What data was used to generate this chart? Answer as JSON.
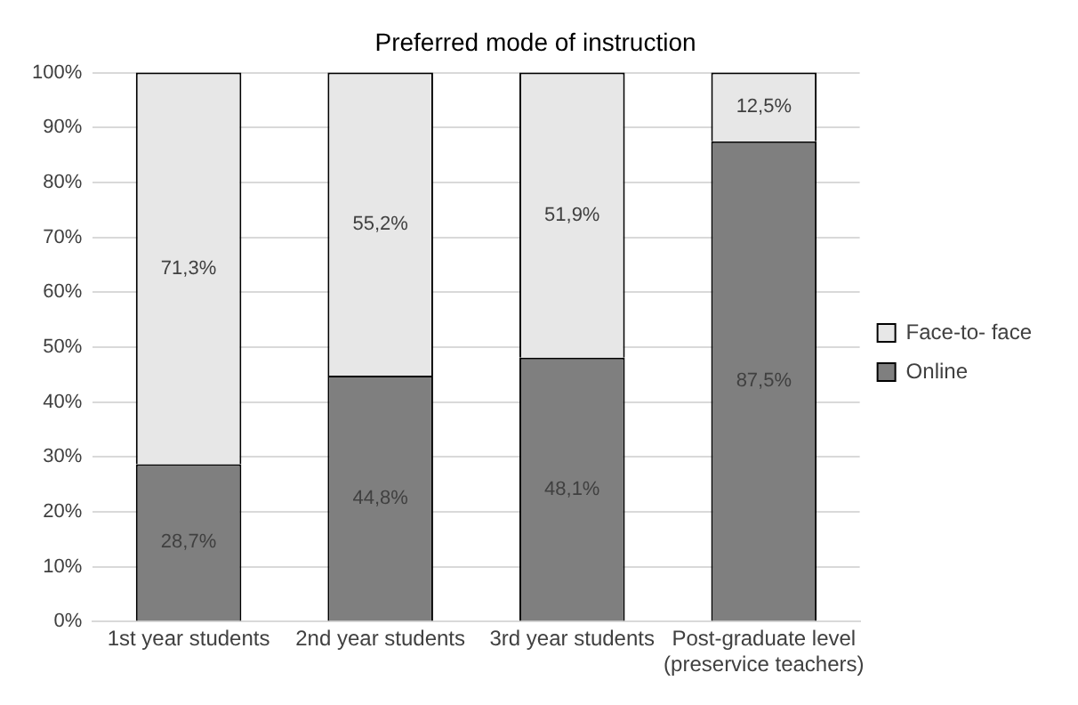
{
  "chart_data": {
    "type": "bar",
    "title": "Preferred mode of instruction",
    "stacked": true,
    "categories": [
      "1st year students",
      "2nd year students",
      "3rd year students",
      "Post-graduate level (preservice teachers)"
    ],
    "series": [
      {
        "name": "Online",
        "color": "#7f7f7f",
        "values": [
          28.7,
          44.8,
          48.1,
          87.5
        ],
        "value_labels": [
          "28,7%",
          "44,8%",
          "48,1%",
          "87,5%"
        ]
      },
      {
        "name": "Face-to- face",
        "color": "#e7e7e7",
        "values": [
          71.3,
          55.2,
          51.9,
          12.5
        ],
        "value_labels": [
          "71,3%",
          "55,2%",
          "51,9%",
          "12,5%"
        ]
      }
    ],
    "ylim": [
      0,
      100
    ],
    "yticks": [
      {
        "value": 0,
        "label": "0%"
      },
      {
        "value": 10,
        "label": "10%"
      },
      {
        "value": 20,
        "label": "20%"
      },
      {
        "value": 30,
        "label": "30%"
      },
      {
        "value": 40,
        "label": "40%"
      },
      {
        "value": 50,
        "label": "50%"
      },
      {
        "value": 60,
        "label": "60%"
      },
      {
        "value": 70,
        "label": "70%"
      },
      {
        "value": 80,
        "label": "80%"
      },
      {
        "value": 90,
        "label": "90%"
      },
      {
        "value": 100,
        "label": "100%"
      }
    ],
    "grid": "y",
    "legend": "right"
  }
}
